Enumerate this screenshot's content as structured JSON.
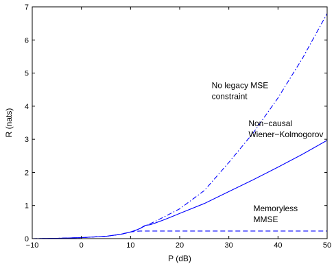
{
  "chart_data": {
    "type": "line",
    "xlabel": "P (dB)",
    "ylabel": "R (nats)",
    "xlim": [
      -10,
      50
    ],
    "ylim": [
      0,
      7
    ],
    "xticks": [
      -10,
      0,
      10,
      20,
      30,
      40,
      50
    ],
    "yticks": [
      0,
      1,
      2,
      3,
      4,
      5,
      6,
      7
    ],
    "grid": false,
    "line_color": "#0000ff",
    "series": [
      {
        "name": "No legacy MSE constraint",
        "style": "dashdot",
        "x": [
          -10,
          -5,
          0,
          5,
          8,
          10,
          11,
          12,
          13,
          14,
          15,
          17,
          20,
          25,
          30,
          35,
          40,
          45,
          50
        ],
        "y": [
          0.0,
          0.01,
          0.03,
          0.07,
          0.13,
          0.2,
          0.25,
          0.31,
          0.39,
          0.45,
          0.52,
          0.67,
          0.9,
          1.45,
          2.3,
          3.2,
          4.25,
          5.45,
          6.8
        ]
      },
      {
        "name": "Non−causal Wiener−Kolmogorov",
        "style": "solid",
        "x": [
          -10,
          -5,
          0,
          5,
          8,
          10,
          11,
          12,
          12.5,
          13,
          14,
          15,
          17,
          20,
          25,
          30,
          35,
          40,
          45,
          50
        ],
        "y": [
          0.0,
          0.01,
          0.03,
          0.07,
          0.13,
          0.2,
          0.25,
          0.31,
          0.36,
          0.4,
          0.42,
          0.47,
          0.58,
          0.76,
          1.06,
          1.42,
          1.78,
          2.16,
          2.55,
          2.97
        ]
      },
      {
        "name": "Memoryless MMSE",
        "style": "dashed",
        "x": [
          -10,
          -5,
          0,
          5,
          8,
          10,
          11,
          12,
          20,
          30,
          40,
          50
        ],
        "y": [
          0.0,
          0.01,
          0.03,
          0.07,
          0.13,
          0.2,
          0.22,
          0.23,
          0.23,
          0.23,
          0.23,
          0.23
        ]
      }
    ],
    "annotations": [
      {
        "lines": [
          "No legacy MSE",
          "constraint"
        ],
        "x": 26.5,
        "y": 4.55
      },
      {
        "lines": [
          "Non−causal",
          "Wiener−Kolmogorov"
        ],
        "x": 34,
        "y": 3.4
      },
      {
        "lines": [
          "Memoryless",
          "MMSE"
        ],
        "x": 35,
        "y": 0.83
      }
    ]
  }
}
